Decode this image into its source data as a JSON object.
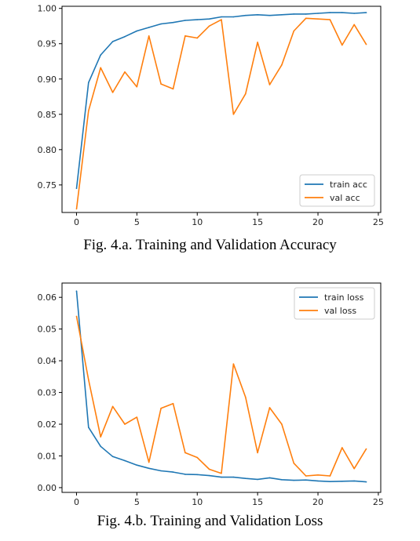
{
  "colors": {
    "train": "#1f77b4",
    "val": "#ff7f0e"
  },
  "chart_data": [
    {
      "type": "line",
      "caption": "Fig. 4.a. Training and Validation Accuracy",
      "xlim": [
        -1.2,
        25.2
      ],
      "ylim": [
        0.711,
        1.003
      ],
      "xticks": [
        0,
        5,
        10,
        15,
        20,
        25
      ],
      "yticks": [
        0.75,
        0.8,
        0.85,
        0.9,
        0.95,
        1.0
      ],
      "ytick_labels": [
        "0.75",
        "0.80",
        "0.85",
        "0.90",
        "0.95",
        "1.00"
      ],
      "legend_position": "lower-right",
      "x": [
        0,
        1,
        2,
        3,
        4,
        5,
        6,
        7,
        8,
        9,
        10,
        11,
        12,
        13,
        14,
        15,
        16,
        17,
        18,
        19,
        20,
        21,
        22,
        23,
        24
      ],
      "series": [
        {
          "name": "train acc",
          "color": "#1f77b4",
          "values": [
            0.745,
            0.895,
            0.934,
            0.953,
            0.96,
            0.968,
            0.973,
            0.978,
            0.98,
            0.983,
            0.984,
            0.985,
            0.988,
            0.988,
            0.99,
            0.991,
            0.99,
            0.991,
            0.992,
            0.992,
            0.993,
            0.994,
            0.994,
            0.993,
            0.994
          ]
        },
        {
          "name": "val acc",
          "color": "#ff7f0e",
          "values": [
            0.716,
            0.855,
            0.916,
            0.881,
            0.91,
            0.889,
            0.961,
            0.893,
            0.886,
            0.961,
            0.958,
            0.975,
            0.984,
            0.85,
            0.879,
            0.952,
            0.892,
            0.92,
            0.968,
            0.986,
            0.985,
            0.984,
            0.948,
            0.977,
            0.949
          ]
        }
      ]
    },
    {
      "type": "line",
      "caption": "Fig. 4.b. Training and Validation Loss",
      "xlim": [
        -1.2,
        25.2
      ],
      "ylim": [
        -0.0015,
        0.0645
      ],
      "xticks": [
        0,
        5,
        10,
        15,
        20,
        25
      ],
      "yticks": [
        0.0,
        0.01,
        0.02,
        0.03,
        0.04,
        0.05,
        0.06
      ],
      "ytick_labels": [
        "0.00",
        "0.01",
        "0.02",
        "0.03",
        "0.04",
        "0.05",
        "0.06"
      ],
      "legend_position": "upper-right",
      "x": [
        0,
        1,
        2,
        3,
        4,
        5,
        6,
        7,
        8,
        9,
        10,
        11,
        12,
        13,
        14,
        15,
        16,
        17,
        18,
        19,
        20,
        21,
        22,
        23,
        24
      ],
      "series": [
        {
          "name": "train loss",
          "color": "#1f77b4",
          "values": [
            0.062,
            0.019,
            0.013,
            0.0098,
            0.0085,
            0.0071,
            0.0061,
            0.0053,
            0.0049,
            0.0042,
            0.0041,
            0.0038,
            0.0033,
            0.0033,
            0.0029,
            0.0026,
            0.0031,
            0.0025,
            0.0023,
            0.0024,
            0.0021,
            0.0019,
            0.002,
            0.0021,
            0.0018
          ]
        },
        {
          "name": "val loss",
          "color": "#ff7f0e",
          "values": [
            0.054,
            0.034,
            0.016,
            0.0256,
            0.02,
            0.0222,
            0.008,
            0.025,
            0.0265,
            0.011,
            0.0095,
            0.0058,
            0.0045,
            0.039,
            0.0285,
            0.011,
            0.0252,
            0.02,
            0.0077,
            0.0037,
            0.004,
            0.0037,
            0.0126,
            0.006,
            0.0122
          ]
        }
      ]
    }
  ]
}
